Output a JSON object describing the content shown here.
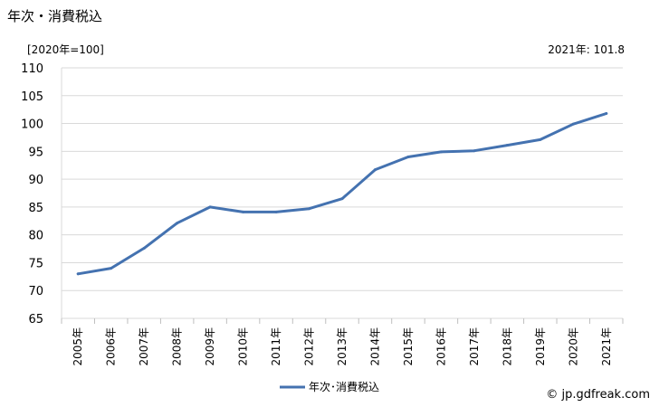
{
  "header": {
    "title": "年次・消費税込",
    "unit": "[2020年=100]",
    "latest": "2021年: 101.8"
  },
  "footer": {
    "credit": "© jp.gdfreak.com"
  },
  "chart_data": {
    "type": "line",
    "x": [
      "2005年",
      "2006年",
      "2007年",
      "2008年",
      "2009年",
      "2010年",
      "2011年",
      "2012年",
      "2013年",
      "2014年",
      "2015年",
      "2016年",
      "2017年",
      "2018年",
      "2019年",
      "2020年",
      "2021年"
    ],
    "series": [
      {
        "name": "年次･消費税込",
        "values": [
          73.0,
          74.0,
          77.6,
          82.1,
          85.0,
          84.1,
          84.1,
          84.7,
          86.5,
          91.7,
          94.0,
          94.9,
          95.1,
          96.1,
          97.1,
          99.9,
          101.8
        ],
        "color": "#4472b0"
      }
    ],
    "yticks": [
      65,
      70,
      75,
      80,
      85,
      90,
      95,
      100,
      105,
      110
    ],
    "ylim": [
      65,
      110
    ],
    "grid": true,
    "legend": "bottom-center"
  }
}
